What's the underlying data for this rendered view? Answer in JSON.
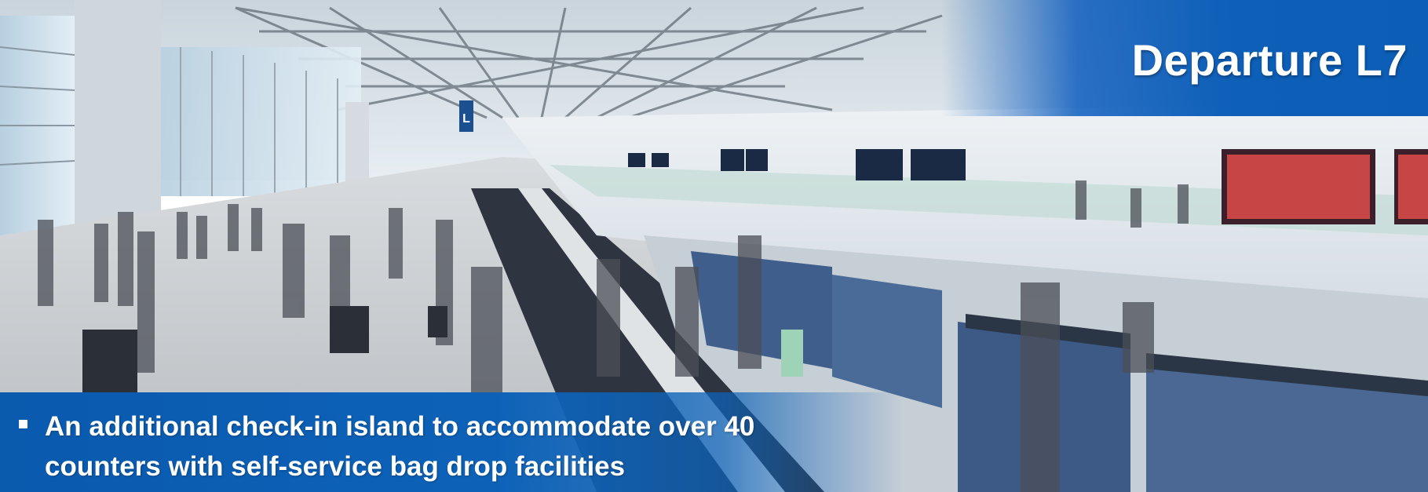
{
  "slide": {
    "title": "Departure L7",
    "bullet_text_line1": "An additional check-in island to accommodate over 40",
    "bullet_text_line2": "counters with self-service bag drop facilities",
    "colors": {
      "banner_blue": "#0b5db5",
      "caption_blue": "#0a5aae",
      "text": "#ffffff"
    }
  },
  "signage": {
    "gate_sign": "L"
  }
}
